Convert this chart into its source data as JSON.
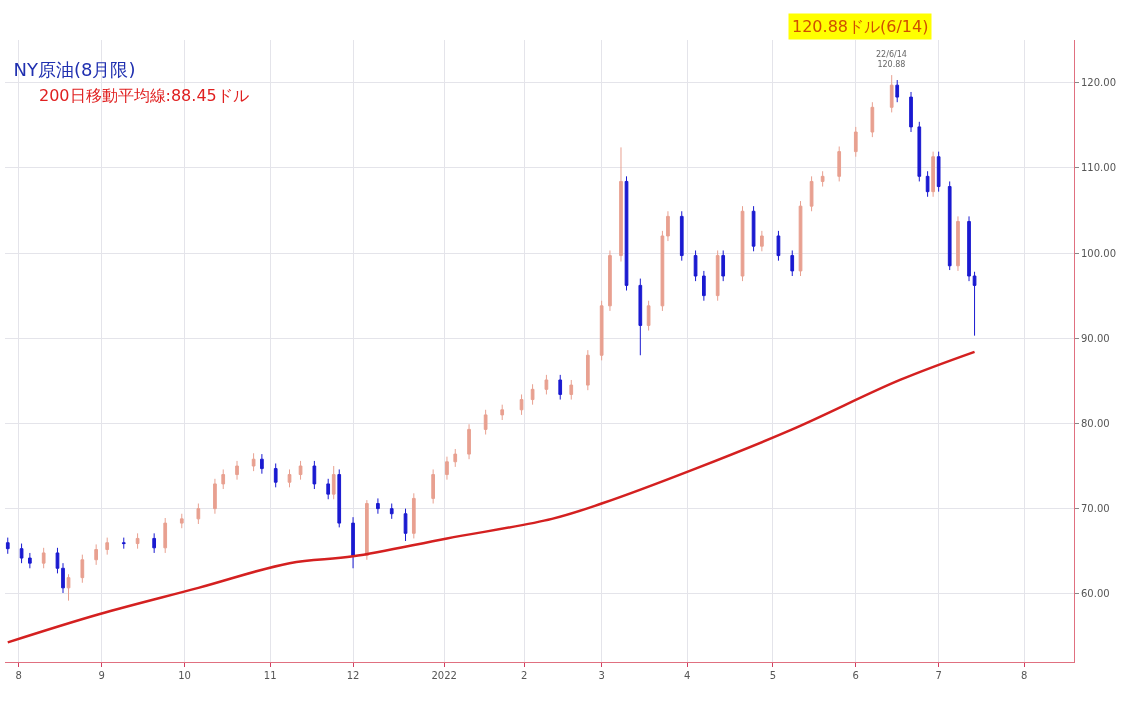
{
  "chart_data": {
    "type": "candlestick",
    "title": "NY原油(8月限)",
    "x": [
      "2021-07-29",
      "2021-08-03",
      "2021-08-06",
      "2021-08-11",
      "2021-08-16",
      "2021-08-18",
      "2021-08-20",
      "2021-08-25",
      "2021-08-30",
      "2021-09-03",
      "2021-09-09",
      "2021-09-14",
      "2021-09-20",
      "2021-09-24",
      "2021-09-30",
      "2021-10-06",
      "2021-10-12",
      "2021-10-15",
      "2021-10-20",
      "2021-10-26",
      "2021-10-29",
      "2021-11-03",
      "2021-11-08",
      "2021-11-12",
      "2021-11-17",
      "2021-11-22",
      "2021-11-24",
      "2021-11-26",
      "2021-12-01",
      "2021-12-06",
      "2021-12-10",
      "2021-12-15",
      "2021-12-20",
      "2021-12-23",
      "2021-12-30",
      "2022-01-04",
      "2022-01-07",
      "2022-01-12",
      "2022-01-18",
      "2022-01-24",
      "2022-01-31",
      "2022-02-04",
      "2022-02-09",
      "2022-02-14",
      "2022-02-18",
      "2022-02-24",
      "2022-03-01",
      "2022-03-04",
      "2022-03-08",
      "2022-03-10",
      "2022-03-15",
      "2022-03-18",
      "2022-03-23",
      "2022-03-25",
      "2022-03-30",
      "2022-04-04",
      "2022-04-07",
      "2022-04-12",
      "2022-04-14",
      "2022-04-21",
      "2022-04-25",
      "2022-04-28",
      "2022-05-04",
      "2022-05-09",
      "2022-05-12",
      "2022-05-16",
      "2022-05-20",
      "2022-05-26",
      "2022-06-01",
      "2022-06-07",
      "2022-06-14",
      "2022-06-16",
      "2022-06-21",
      "2022-06-24",
      "2022-06-27",
      "2022-06-29",
      "2022-07-01",
      "2022-07-05",
      "2022-07-08",
      "2022-07-12",
      "2022-07-14"
    ],
    "ohlc": [
      [
        66.0,
        66.6,
        64.7,
        65.3
      ],
      [
        65.3,
        65.9,
        63.6,
        64.2
      ],
      [
        64.2,
        64.8,
        63.0,
        63.6
      ],
      [
        63.6,
        65.4,
        63.0,
        64.8
      ],
      [
        64.8,
        65.4,
        62.4,
        63.0
      ],
      [
        63.0,
        63.6,
        60.1,
        60.7
      ],
      [
        60.7,
        62.3,
        59.2,
        61.9
      ],
      [
        61.9,
        64.6,
        61.3,
        64.0
      ],
      [
        64.0,
        65.8,
        63.4,
        65.2
      ],
      [
        65.2,
        66.6,
        64.6,
        66.0
      ],
      [
        66.0,
        66.6,
        65.3,
        65.9
      ],
      [
        65.9,
        67.1,
        65.3,
        66.5
      ],
      [
        66.5,
        67.1,
        64.8,
        65.4
      ],
      [
        65.4,
        68.9,
        64.8,
        68.3
      ],
      [
        68.3,
        69.4,
        67.7,
        68.8
      ],
      [
        68.8,
        70.6,
        68.2,
        70.0
      ],
      [
        70.0,
        73.5,
        69.4,
        72.9
      ],
      [
        72.9,
        74.6,
        72.3,
        74.0
      ],
      [
        74.0,
        75.6,
        73.4,
        75.0
      ],
      [
        75.0,
        76.5,
        74.4,
        75.8
      ],
      [
        75.8,
        76.4,
        74.1,
        74.7
      ],
      [
        74.7,
        75.3,
        72.5,
        73.1
      ],
      [
        73.1,
        74.6,
        72.5,
        74.0
      ],
      [
        74.0,
        75.6,
        73.4,
        75.0
      ],
      [
        75.0,
        75.6,
        72.3,
        72.9
      ],
      [
        72.9,
        73.5,
        71.1,
        71.7
      ],
      [
        71.7,
        75.0,
        71.1,
        74.0
      ],
      [
        74.0,
        74.6,
        67.8,
        68.3
      ],
      [
        68.3,
        69.0,
        63.0,
        64.5
      ],
      [
        64.5,
        71.0,
        64.0,
        70.6
      ],
      [
        70.6,
        71.2,
        69.4,
        70.0
      ],
      [
        70.0,
        70.6,
        68.8,
        69.4
      ],
      [
        69.4,
        70.0,
        66.2,
        67.1
      ],
      [
        67.1,
        71.8,
        66.5,
        71.2
      ],
      [
        71.2,
        74.6,
        70.6,
        74.0
      ],
      [
        74.0,
        76.1,
        73.4,
        75.5
      ],
      [
        75.5,
        77.0,
        74.9,
        76.4
      ],
      [
        76.4,
        79.9,
        75.8,
        79.3
      ],
      [
        79.3,
        81.6,
        78.7,
        81.0
      ],
      [
        81.0,
        82.2,
        80.4,
        81.6
      ],
      [
        81.6,
        83.4,
        81.0,
        82.8
      ],
      [
        82.8,
        84.6,
        82.2,
        84.0
      ],
      [
        84.0,
        85.7,
        83.4,
        85.1
      ],
      [
        85.1,
        85.7,
        82.8,
        83.4
      ],
      [
        83.4,
        85.1,
        82.8,
        84.5
      ],
      [
        84.5,
        88.6,
        83.9,
        88.0
      ],
      [
        88.0,
        94.4,
        87.4,
        93.8
      ],
      [
        93.8,
        100.3,
        93.2,
        99.7
      ],
      [
        99.7,
        112.4,
        99.0,
        108.4
      ],
      [
        108.4,
        109.0,
        95.6,
        96.2
      ],
      [
        96.2,
        97.0,
        88.0,
        91.5
      ],
      [
        91.5,
        94.4,
        90.9,
        93.8
      ],
      [
        93.8,
        102.6,
        93.2,
        102.0
      ],
      [
        102.0,
        104.9,
        101.4,
        104.3
      ],
      [
        104.3,
        104.9,
        99.1,
        99.7
      ],
      [
        99.7,
        100.3,
        96.7,
        97.3
      ],
      [
        97.3,
        97.9,
        94.4,
        95.0
      ],
      [
        95.0,
        100.3,
        94.4,
        99.7
      ],
      [
        99.7,
        100.3,
        96.7,
        97.3
      ],
      [
        97.3,
        105.5,
        96.7,
        104.9
      ],
      [
        104.9,
        105.5,
        100.2,
        100.8
      ],
      [
        100.8,
        102.6,
        100.2,
        102.0
      ],
      [
        102.0,
        102.6,
        99.1,
        99.7
      ],
      [
        99.7,
        100.3,
        97.3,
        97.9
      ],
      [
        97.9,
        106.1,
        97.3,
        105.5
      ],
      [
        105.5,
        109.0,
        104.9,
        108.4
      ],
      [
        108.4,
        109.6,
        107.8,
        109.0
      ],
      [
        109.0,
        112.5,
        108.4,
        111.9
      ],
      [
        111.9,
        114.8,
        111.3,
        114.2
      ],
      [
        114.2,
        117.7,
        113.6,
        117.1
      ],
      [
        117.1,
        120.88,
        116.5,
        119.7
      ],
      [
        119.7,
        120.3,
        117.7,
        118.3
      ],
      [
        118.3,
        118.9,
        114.2,
        114.8
      ],
      [
        114.8,
        115.4,
        108.4,
        109.0
      ],
      [
        109.0,
        109.6,
        106.6,
        107.2
      ],
      [
        107.2,
        111.9,
        106.6,
        111.3
      ],
      [
        111.3,
        111.9,
        107.2,
        107.8
      ],
      [
        107.8,
        108.4,
        98.0,
        98.5
      ],
      [
        98.5,
        104.3,
        97.9,
        103.7
      ],
      [
        103.7,
        104.3,
        96.7,
        97.3
      ],
      [
        97.3,
        97.8,
        90.3,
        96.2
      ]
    ],
    "colors": [
      "#1a1ad0",
      "#1a1ad0",
      "#1a1ad0",
      "#e8a090",
      "#1a1ad0",
      "#1a1ad0",
      "#e8a090",
      "#e8a090",
      "#e8a090",
      "#e8a090",
      "#1a1ad0",
      "#e8a090",
      "#1a1ad0",
      "#e8a090",
      "#e8a090",
      "#e8a090",
      "#e8a090",
      "#e8a090",
      "#e8a090",
      "#e8a090",
      "#1a1ad0",
      "#1a1ad0",
      "#e8a090",
      "#e8a090",
      "#1a1ad0",
      "#1a1ad0",
      "#e8a090",
      "#1a1ad0",
      "#1a1ad0",
      "#e8a090",
      "#1a1ad0",
      "#1a1ad0",
      "#1a1ad0",
      "#e8a090",
      "#e8a090",
      "#e8a090",
      "#e8a090",
      "#e8a090",
      "#e8a090",
      "#e8a090",
      "#e8a090",
      "#e8a090",
      "#e8a090",
      "#1a1ad0",
      "#e8a090",
      "#e8a090",
      "#e8a090",
      "#e8a090",
      "#e8a090",
      "#1a1ad0",
      "#1a1ad0",
      "#e8a090",
      "#e8a090",
      "#e8a090",
      "#1a1ad0",
      "#1a1ad0",
      "#1a1ad0",
      "#e8a090",
      "#1a1ad0",
      "#e8a090",
      "#1a1ad0",
      "#e8a090",
      "#1a1ad0",
      "#1a1ad0",
      "#e8a090",
      "#e8a090",
      "#e8a090",
      "#e8a090",
      "#e8a090",
      "#e8a090",
      "#e8a090",
      "#1a1ad0",
      "#1a1ad0",
      "#1a1ad0",
      "#1a1ad0",
      "#e8a090",
      "#1a1ad0",
      "#1a1ad0",
      "#e8a090",
      "#1a1ad0",
      "#1a1ad0"
    ],
    "series": [
      {
        "type": "line",
        "color": "#d42020",
        "x": [
          "2021-07-29",
          "2021-08-31",
          "2021-10-06",
          "2021-11-08",
          "2021-12-01",
          "2022-01-04",
          "2022-02-11",
          "2022-03-01",
          "2022-04-04",
          "2022-05-09",
          "2022-06-17",
          "2022-07-14"
        ],
        "values": [
          54.3,
          57.6,
          60.7,
          63.6,
          64.4,
          66.5,
          68.8,
          70.6,
          74.7,
          79.3,
          85.1,
          88.4
        ]
      }
    ],
    "xlim": [
      "2021-07-28",
      "2022-08-19"
    ],
    "xticks": [
      {
        "value": "2021-08-02",
        "label": "8"
      },
      {
        "value": "2021-09-01",
        "label": "9"
      },
      {
        "value": "2021-10-01",
        "label": "10"
      },
      {
        "value": "2021-11-01",
        "label": "11"
      },
      {
        "value": "2021-12-01",
        "label": "12"
      },
      {
        "value": "2022-01-03",
        "label": "2022"
      },
      {
        "value": "2022-02-01",
        "label": "2"
      },
      {
        "value": "2022-03-01",
        "label": "3"
      },
      {
        "value": "2022-04-01",
        "label": "4"
      },
      {
        "value": "2022-05-02",
        "label": "5"
      },
      {
        "value": "2022-06-01",
        "label": "6"
      },
      {
        "value": "2022-07-01",
        "label": "7"
      },
      {
        "value": "2022-08-01",
        "label": "8"
      }
    ],
    "ylim": [
      52,
      125
    ],
    "yticks": [
      {
        "value": 60,
        "label": "60.00"
      },
      {
        "value": 70,
        "label": "70.00"
      },
      {
        "value": 80,
        "label": "80.00"
      },
      {
        "value": 90,
        "label": "90.00"
      },
      {
        "value": 100,
        "label": "100.00"
      },
      {
        "value": 110,
        "label": "110.00"
      },
      {
        "value": 120,
        "label": "120.00"
      }
    ],
    "grid": true,
    "annotations": [
      "200日移動平均線:88.45ドル",
      "120.88ドル(6/14)",
      {
        "text": "22/6/14\n120.88",
        "x": "2022-06-14",
        "y": 120.88
      }
    ]
  }
}
